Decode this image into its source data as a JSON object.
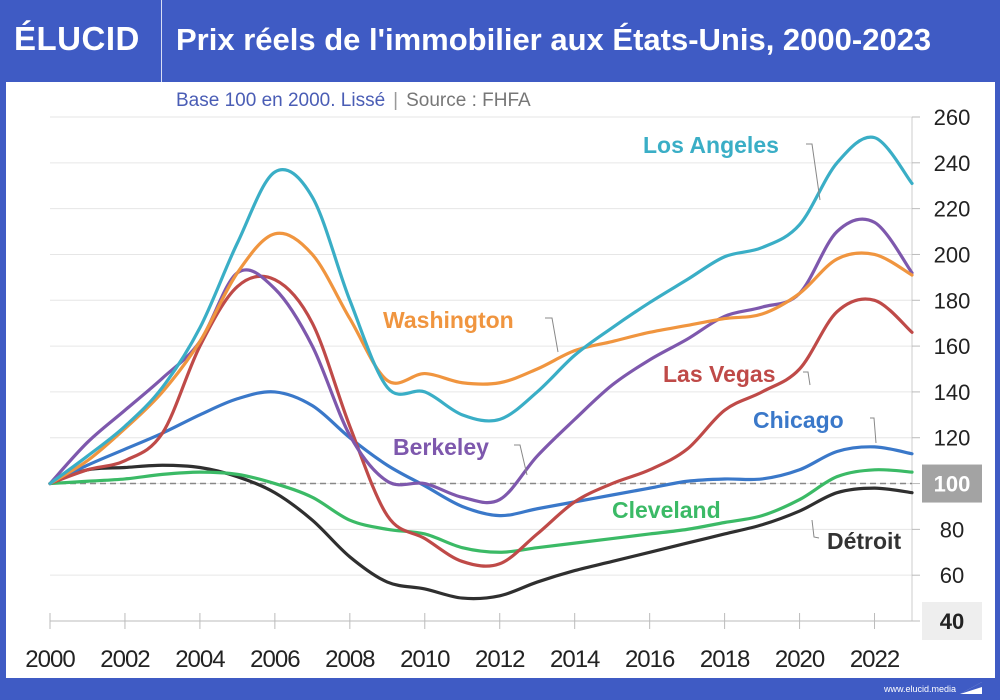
{
  "header": {
    "logo": "ÉLUCID",
    "title": "Prix réels de l'immobilier aux États-Unis, 2000-2023"
  },
  "subtitle": {
    "main": "Base 100 en 2000. Lissé",
    "separator": "|",
    "source": "Source : FHFA"
  },
  "footer": {
    "url": "www.elucid.media",
    "icon": "elucid-mark-icon"
  },
  "chart_data": {
    "type": "line",
    "title": "Prix réels de l'immobilier aux États-Unis, 2000-2023",
    "subtitle": "Base 100 en 2000. Lissé | Source : FHFA",
    "xlabel": "",
    "ylabel": "",
    "x": [
      2000,
      2001,
      2002,
      2003,
      2004,
      2005,
      2006,
      2007,
      2008,
      2009,
      2010,
      2011,
      2012,
      2013,
      2014,
      2015,
      2016,
      2017,
      2018,
      2019,
      2020,
      2021,
      2022,
      2023
    ],
    "xlim": [
      2000,
      2023
    ],
    "ylim": [
      40,
      260
    ],
    "x_ticks": [
      "2000",
      "2002",
      "2004",
      "2006",
      "2008",
      "2010",
      "2012",
      "2014",
      "2016",
      "2018",
      "2020",
      "2022"
    ],
    "y_ticks": [
      40,
      60,
      80,
      100,
      120,
      140,
      160,
      180,
      200,
      220,
      240,
      260
    ],
    "y_axis_position": "right",
    "highlighted_ticks": [
      100,
      40
    ],
    "reference_line": {
      "value": 100,
      "style": "dashed"
    },
    "grid": true,
    "series": [
      {
        "name": "Los Angeles",
        "color": "#3aaec6",
        "values": [
          100,
          112,
          125,
          142,
          168,
          205,
          236,
          225,
          180,
          142,
          140,
          130,
          128,
          140,
          156,
          168,
          179,
          189,
          199,
          203,
          213,
          240,
          251,
          231
        ]
      },
      {
        "name": "Washington",
        "color": "#f0953f",
        "values": [
          100,
          110,
          124,
          140,
          162,
          192,
          209,
          200,
          172,
          145,
          148,
          144,
          144,
          150,
          158,
          162,
          166,
          169,
          172,
          174,
          183,
          198,
          200,
          191
        ]
      },
      {
        "name": "Berkeley",
        "color": "#7e58ad",
        "values": [
          100,
          118,
          132,
          146,
          162,
          192,
          185,
          160,
          121,
          101,
          100,
          94,
          93,
          112,
          128,
          143,
          154,
          163,
          173,
          177,
          183,
          210,
          214,
          192
        ]
      },
      {
        "name": "Las Vegas",
        "color": "#bf4a48",
        "values": [
          100,
          106,
          110,
          122,
          160,
          186,
          189,
          170,
          125,
          86,
          76,
          66,
          65,
          78,
          92,
          100,
          106,
          115,
          132,
          140,
          150,
          175,
          180,
          166
        ]
      },
      {
        "name": "Chicago",
        "color": "#3a78c9",
        "values": [
          100,
          108,
          115,
          122,
          130,
          137,
          140,
          134,
          120,
          108,
          99,
          90,
          86,
          89,
          92,
          95,
          98,
          101,
          102,
          102,
          106,
          114,
          116,
          113
        ]
      },
      {
        "name": "Cleveland",
        "color": "#3bba66",
        "values": [
          100,
          101,
          102,
          104,
          105,
          104,
          100,
          94,
          84,
          80,
          78,
          72,
          70,
          72,
          74,
          76,
          78,
          80,
          83,
          86,
          93,
          103,
          106,
          105
        ]
      },
      {
        "name": "Détroit",
        "color": "#2f2f2f",
        "values": [
          100,
          106,
          107,
          108,
          107,
          103,
          96,
          84,
          68,
          57,
          54,
          50,
          51,
          57,
          62,
          66,
          70,
          74,
          78,
          82,
          88,
          96,
          98,
          96
        ]
      }
    ],
    "annotations": [
      {
        "text": "Los Angeles",
        "series": "Los Angeles"
      },
      {
        "text": "Washington",
        "series": "Washington"
      },
      {
        "text": "Berkeley",
        "series": "Berkeley"
      },
      {
        "text": "Las Vegas",
        "series": "Las Vegas"
      },
      {
        "text": "Chicago",
        "series": "Chicago"
      },
      {
        "text": "Cleveland",
        "series": "Cleveland"
      },
      {
        "text": "Détroit",
        "series": "Détroit"
      }
    ]
  }
}
